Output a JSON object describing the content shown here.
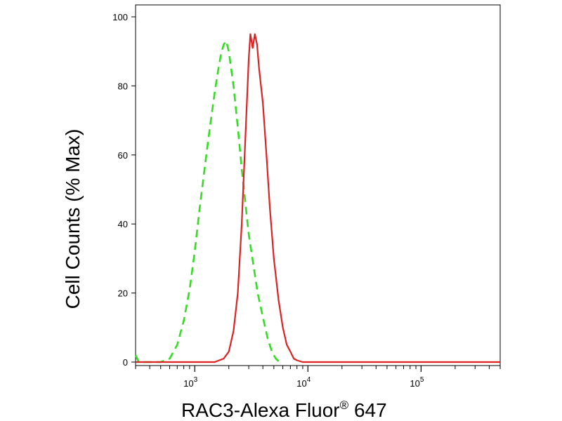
{
  "chart_data": {
    "type": "line",
    "title": "",
    "xlabel": "RAC3-Alexa Fluor",
    "xlabel_mark": "®",
    "xlabel_suffix": " 647",
    "ylabel": "Cell Counts (% Max)",
    "xscale": "log",
    "xlim": [
      300,
      500000
    ],
    "ylim": [
      0,
      105
    ],
    "grid": false,
    "yticks": [
      0,
      20,
      40,
      60,
      80,
      100
    ],
    "xticks": [
      {
        "value": 1000,
        "base": "10",
        "exp": "3"
      },
      {
        "value": 10000,
        "base": "10",
        "exp": "4"
      },
      {
        "value": 100000,
        "base": "10",
        "exp": "5"
      }
    ],
    "series": [
      {
        "color": "#33dd22",
        "dash": "dashed",
        "points": [
          [
            300,
            2
          ],
          [
            320,
            0
          ],
          [
            500,
            0
          ],
          [
            600,
            1
          ],
          [
            700,
            5
          ],
          [
            800,
            12
          ],
          [
            900,
            21
          ],
          [
            1000,
            32
          ],
          [
            1100,
            44
          ],
          [
            1200,
            54
          ],
          [
            1300,
            63
          ],
          [
            1400,
            71
          ],
          [
            1500,
            78
          ],
          [
            1600,
            84
          ],
          [
            1700,
            89
          ],
          [
            1800,
            92
          ],
          [
            1900,
            93
          ],
          [
            2000,
            90
          ],
          [
            2200,
            80
          ],
          [
            2400,
            68
          ],
          [
            2600,
            56
          ],
          [
            2800,
            46
          ],
          [
            3000,
            37
          ],
          [
            3300,
            28
          ],
          [
            3600,
            20
          ],
          [
            4000,
            13
          ],
          [
            4400,
            7
          ],
          [
            4800,
            3
          ],
          [
            5200,
            1
          ],
          [
            5600,
            0
          ]
        ]
      },
      {
        "color": "#dd2222",
        "dash": "solid",
        "points": [
          [
            300,
            0
          ],
          [
            1500,
            0
          ],
          [
            1800,
            1
          ],
          [
            2000,
            3
          ],
          [
            2200,
            9
          ],
          [
            2400,
            20
          ],
          [
            2600,
            40
          ],
          [
            2800,
            65
          ],
          [
            3000,
            88
          ],
          [
            3100,
            95
          ],
          [
            3250,
            91
          ],
          [
            3400,
            95
          ],
          [
            3550,
            92
          ],
          [
            3700,
            85
          ],
          [
            4000,
            75
          ],
          [
            4300,
            60
          ],
          [
            4600,
            45
          ],
          [
            5000,
            30
          ],
          [
            5500,
            18
          ],
          [
            6000,
            10
          ],
          [
            6500,
            5
          ],
          [
            7000,
            3
          ],
          [
            7500,
            1
          ],
          [
            8000,
            0.5
          ],
          [
            9000,
            0
          ],
          [
            500000,
            0
          ]
        ]
      }
    ]
  }
}
